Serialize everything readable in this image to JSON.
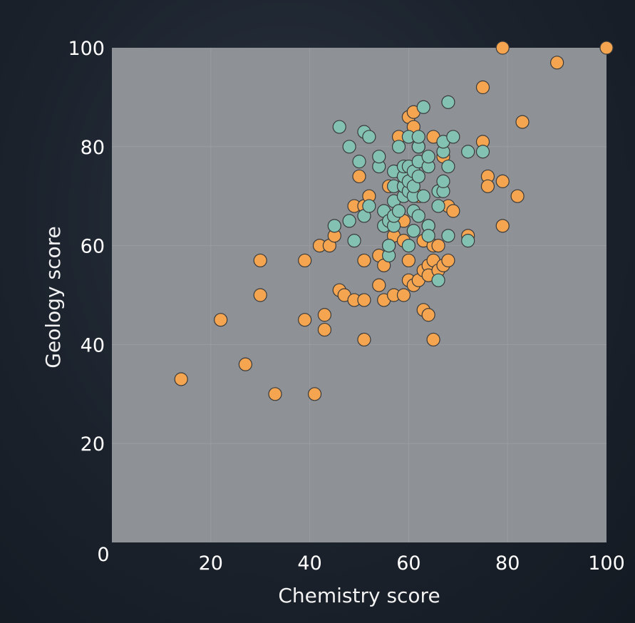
{
  "colors": {
    "plot_background": "#8e9196",
    "grid": "#999ca1",
    "marker_edge": "#3a3a3a"
  },
  "chart_data": {
    "type": "scatter",
    "xlabel": "Chemistry score",
    "ylabel": "Geology score",
    "xlim": [
      0,
      100
    ],
    "ylim": [
      0,
      100
    ],
    "xticks": [
      0,
      20,
      40,
      60,
      80,
      100
    ],
    "yticks": [
      0,
      20,
      40,
      60,
      80,
      100
    ],
    "x_tick_labels": [
      "0",
      "20",
      "40",
      "60",
      "80",
      "100"
    ],
    "y_tick_labels": [
      "",
      "20",
      "40",
      "60",
      "80",
      "100"
    ],
    "grid": true,
    "legend": "none",
    "series": [
      {
        "color": "#f5a550",
        "points": [
          [
            14,
            33
          ],
          [
            22,
            45
          ],
          [
            27,
            36
          ],
          [
            30,
            57
          ],
          [
            30,
            50
          ],
          [
            33,
            30
          ],
          [
            39,
            57
          ],
          [
            39,
            45
          ],
          [
            41,
            30
          ],
          [
            42,
            60
          ],
          [
            43,
            46
          ],
          [
            43,
            43
          ],
          [
            44,
            60
          ],
          [
            45,
            62
          ],
          [
            46,
            51
          ],
          [
            47,
            50
          ],
          [
            49,
            49
          ],
          [
            51,
            49
          ],
          [
            51,
            57
          ],
          [
            51,
            41
          ],
          [
            50,
            74
          ],
          [
            49,
            68
          ],
          [
            51,
            68
          ],
          [
            52,
            70
          ],
          [
            54,
            58
          ],
          [
            54,
            52
          ],
          [
            55,
            56
          ],
          [
            55,
            49
          ],
          [
            57,
            50
          ],
          [
            57,
            62
          ],
          [
            56,
            60
          ],
          [
            58,
            82
          ],
          [
            59,
            50
          ],
          [
            59,
            65
          ],
          [
            60,
            86
          ],
          [
            60,
            53
          ],
          [
            61,
            87
          ],
          [
            61,
            84
          ],
          [
            61,
            52
          ],
          [
            62,
            80
          ],
          [
            62,
            53
          ],
          [
            63,
            55
          ],
          [
            63,
            61
          ],
          [
            63,
            47
          ],
          [
            64,
            56
          ],
          [
            64,
            46
          ],
          [
            64,
            54
          ],
          [
            65,
            57
          ],
          [
            65,
            60
          ],
          [
            65,
            82
          ],
          [
            65,
            41
          ],
          [
            66,
            55
          ],
          [
            66,
            60
          ],
          [
            67,
            78
          ],
          [
            67,
            56
          ],
          [
            68,
            57
          ],
          [
            68,
            68
          ],
          [
            69,
            67
          ],
          [
            72,
            62
          ],
          [
            75,
            92
          ],
          [
            75,
            81
          ],
          [
            76,
            74
          ],
          [
            76,
            72
          ],
          [
            79,
            73
          ],
          [
            79,
            64
          ],
          [
            79,
            100
          ],
          [
            82,
            70
          ],
          [
            83,
            85
          ],
          [
            90,
            97
          ],
          [
            100,
            100
          ],
          [
            58,
            75
          ],
          [
            62,
            70
          ],
          [
            56,
            72
          ],
          [
            64,
            64
          ],
          [
            60,
            57
          ],
          [
            59,
            61
          ]
        ]
      },
      {
        "color": "#83c2b2",
        "points": [
          [
            46,
            84
          ],
          [
            48,
            80
          ],
          [
            45,
            64
          ],
          [
            48,
            65
          ],
          [
            49,
            61
          ],
          [
            50,
            77
          ],
          [
            51,
            66
          ],
          [
            51,
            83
          ],
          [
            52,
            68
          ],
          [
            52,
            82
          ],
          [
            54,
            76
          ],
          [
            54,
            78
          ],
          [
            55,
            67
          ],
          [
            55,
            64
          ],
          [
            56,
            58
          ],
          [
            56,
            60
          ],
          [
            56,
            65
          ],
          [
            57,
            64
          ],
          [
            57,
            66
          ],
          [
            57,
            69
          ],
          [
            57,
            72
          ],
          [
            57,
            75
          ],
          [
            58,
            80
          ],
          [
            58,
            67
          ],
          [
            59,
            70
          ],
          [
            59,
            72
          ],
          [
            59,
            74
          ],
          [
            59,
            76
          ],
          [
            60,
            71
          ],
          [
            60,
            73
          ],
          [
            60,
            76
          ],
          [
            60,
            60
          ],
          [
            60,
            82
          ],
          [
            61,
            63
          ],
          [
            61,
            67
          ],
          [
            61,
            70
          ],
          [
            61,
            72
          ],
          [
            61,
            75
          ],
          [
            62,
            74
          ],
          [
            62,
            77
          ],
          [
            62,
            66
          ],
          [
            62,
            80
          ],
          [
            62,
            82
          ],
          [
            63,
            70
          ],
          [
            63,
            88
          ],
          [
            64,
            64
          ],
          [
            64,
            62
          ],
          [
            64,
            76
          ],
          [
            64,
            78
          ],
          [
            66,
            71
          ],
          [
            66,
            68
          ],
          [
            66,
            53
          ],
          [
            67,
            79
          ],
          [
            67,
            81
          ],
          [
            67,
            71
          ],
          [
            67,
            73
          ],
          [
            68,
            89
          ],
          [
            68,
            62
          ],
          [
            68,
            76
          ],
          [
            69,
            82
          ],
          [
            72,
            79
          ],
          [
            72,
            61
          ],
          [
            75,
            79
          ]
        ]
      }
    ]
  }
}
